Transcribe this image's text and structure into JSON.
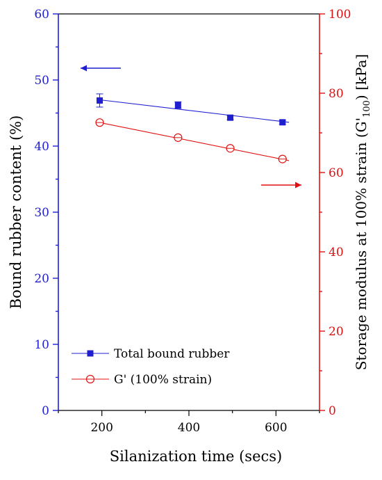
{
  "chart_data": {
    "type": "scatter",
    "x_axis": {
      "label": "Silanization time (secs)",
      "range": [
        100,
        700
      ],
      "ticks": [
        200,
        400,
        600
      ],
      "color": "#000000"
    },
    "y_left": {
      "label": "Bound rubber content (%)",
      "range": [
        0,
        60
      ],
      "ticks": [
        0,
        10,
        20,
        30,
        40,
        50,
        60
      ],
      "color": "#1f1fd0"
    },
    "y_right": {
      "label": "Storage modulus at 100% strain (G'",
      "label_sub": "100",
      "label_end": ") [kPa]",
      "range": [
        0,
        100
      ],
      "ticks": [
        0,
        20,
        40,
        60,
        80,
        100
      ],
      "color": "#e01010"
    },
    "series": [
      {
        "name": "Total bound rubber",
        "axis": "left",
        "marker": "square",
        "color": "#1f1fd0",
        "x": [
          195,
          375,
          495,
          615
        ],
        "y": [
          46.9,
          46.2,
          44.3,
          43.6
        ],
        "y_err": [
          1.0,
          0.5,
          0.3,
          0.3
        ],
        "fit": [
          [
            195,
            47.0
          ],
          [
            630,
            43.6
          ]
        ]
      },
      {
        "name": "G' (100% strain)",
        "axis": "right",
        "marker": "circle-open",
        "color": "#e01010",
        "x": [
          195,
          375,
          495,
          615
        ],
        "y": [
          72.6,
          68.8,
          66.1,
          63.4
        ],
        "fit": [
          [
            195,
            72.6
          ],
          [
            630,
            63.0
          ]
        ]
      }
    ],
    "arrows": [
      {
        "points_to": "left",
        "color": "#1f1fd0"
      },
      {
        "points_to": "right",
        "color": "#e01010"
      }
    ],
    "legend_position": "bottom-left",
    "grid": false
  }
}
